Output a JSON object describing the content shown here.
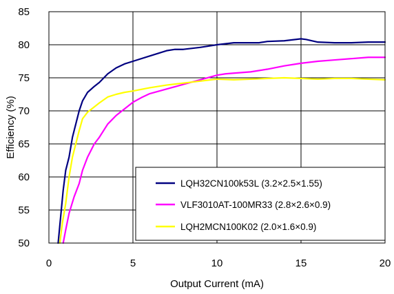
{
  "chart_data": {
    "type": "line",
    "title": "",
    "xlabel": "Output Current (mA)",
    "ylabel": "Efficiency (%)",
    "xlim": [
      0,
      20
    ],
    "ylim": [
      50,
      85
    ],
    "x_ticks": [
      0,
      5,
      10,
      15,
      20
    ],
    "x_tick_labels": [
      "0",
      "5",
      "10",
      "15",
      "20"
    ],
    "y_ticks": [
      50,
      55,
      60,
      65,
      70,
      75,
      80,
      85
    ],
    "y_tick_labels": [
      "50",
      "55",
      "60",
      "65",
      "70",
      "75",
      "80",
      "85"
    ],
    "grid": true,
    "legend_position": "bottom-right",
    "series": [
      {
        "name": "LQH32CN100k53L (3.2×2.5×1.55)",
        "color": "#000080",
        "points": [
          [
            0.55,
            50
          ],
          [
            0.7,
            54
          ],
          [
            0.85,
            58
          ],
          [
            1.0,
            61
          ],
          [
            1.2,
            63
          ],
          [
            1.4,
            66
          ],
          [
            1.6,
            68
          ],
          [
            1.8,
            70
          ],
          [
            2.0,
            71.5
          ],
          [
            2.3,
            72.8
          ],
          [
            2.7,
            73.7
          ],
          [
            3.0,
            74.3
          ],
          [
            3.5,
            75.6
          ],
          [
            4.0,
            76.5
          ],
          [
            4.5,
            77.1
          ],
          [
            5.0,
            77.5
          ],
          [
            6.0,
            78.3
          ],
          [
            7.0,
            79.1
          ],
          [
            7.5,
            79.3
          ],
          [
            8.0,
            79.3
          ],
          [
            9.0,
            79.6
          ],
          [
            10.0,
            80.0
          ],
          [
            11.0,
            80.3
          ],
          [
            12.0,
            80.3
          ],
          [
            12.5,
            80.3
          ],
          [
            13.0,
            80.5
          ],
          [
            14.0,
            80.6
          ],
          [
            15.0,
            80.9
          ],
          [
            15.3,
            80.8
          ],
          [
            16.0,
            80.4
          ],
          [
            17.0,
            80.3
          ],
          [
            18.0,
            80.3
          ],
          [
            19.0,
            80.4
          ],
          [
            20.0,
            80.4
          ]
        ]
      },
      {
        "name": "VLF3010AT-100MR33 (2.8×2.6×0.9)",
        "color": "#FF00FF",
        "points": [
          [
            0.85,
            50
          ],
          [
            1.0,
            52
          ],
          [
            1.2,
            54.5
          ],
          [
            1.5,
            57
          ],
          [
            1.8,
            59
          ],
          [
            2.0,
            61
          ],
          [
            2.3,
            63
          ],
          [
            2.7,
            65
          ],
          [
            3.0,
            66
          ],
          [
            3.5,
            68
          ],
          [
            4.0,
            69.3
          ],
          [
            4.5,
            70.3
          ],
          [
            5.0,
            71.3
          ],
          [
            5.5,
            72
          ],
          [
            6.0,
            72.6
          ],
          [
            7.0,
            73.3
          ],
          [
            8.0,
            74.0
          ],
          [
            9.0,
            74.7
          ],
          [
            10.0,
            75.4
          ],
          [
            10.5,
            75.6
          ],
          [
            11.0,
            75.7
          ],
          [
            12.0,
            75.9
          ],
          [
            13.0,
            76.3
          ],
          [
            14.0,
            76.8
          ],
          [
            15.0,
            77.2
          ],
          [
            16.0,
            77.5
          ],
          [
            17.0,
            77.7
          ],
          [
            18.0,
            77.9
          ],
          [
            19.0,
            78.1
          ],
          [
            20.0,
            78.1
          ]
        ]
      },
      {
        "name": "LQH2MCN100K02 (2.0×1.6×0.9)",
        "color": "#FFFF00",
        "points": [
          [
            0.65,
            50
          ],
          [
            0.8,
            53
          ],
          [
            1.0,
            56
          ],
          [
            1.2,
            60
          ],
          [
            1.4,
            63
          ],
          [
            1.6,
            65
          ],
          [
            1.8,
            67
          ],
          [
            2.0,
            68.8
          ],
          [
            2.3,
            69.8
          ],
          [
            2.7,
            70.6
          ],
          [
            3.0,
            71.2
          ],
          [
            3.5,
            72.1
          ],
          [
            4.0,
            72.5
          ],
          [
            4.5,
            72.8
          ],
          [
            5.0,
            73.0
          ],
          [
            6.0,
            73.5
          ],
          [
            7.0,
            73.9
          ],
          [
            8.0,
            74.2
          ],
          [
            9.0,
            74.5
          ],
          [
            10.0,
            74.8
          ],
          [
            11.0,
            74.7
          ],
          [
            12.0,
            74.8
          ],
          [
            13.0,
            74.9
          ],
          [
            14.0,
            75.0
          ],
          [
            15.0,
            74.9
          ],
          [
            16.0,
            74.8
          ],
          [
            17.0,
            74.9
          ],
          [
            18.0,
            74.9
          ],
          [
            19.0,
            74.8
          ],
          [
            20.0,
            74.7
          ]
        ]
      }
    ]
  }
}
